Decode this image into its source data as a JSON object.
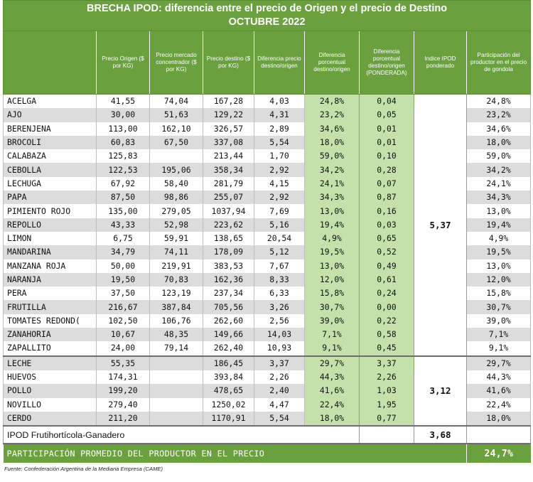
{
  "title": {
    "line1": "BRECHA IPOD: diferencia entre el precio de Origen y el precio de Destino",
    "line2": "OCTUBRE 2022"
  },
  "headers": [
    "",
    "Precio Origen ($ por KG)",
    "Precio mercado concentrador ($ por KG)",
    "Precio destino ($ por KG)",
    "Diferencia precio destino/origen",
    "Diferencia porcentual destino/origen",
    "Diferencia porcentual destino/origen (PONDERADA)",
    "Indice IPOD ponderado",
    "Participación del productor en el precio de gondola"
  ],
  "groups": [
    {
      "ipod": "5,37",
      "rows": [
        {
          "producto": "ACELGA",
          "origen": "41,55",
          "mercado": "74,04",
          "destino": "167,28",
          "diferencia": "4,03",
          "porcentual": "24,8%",
          "ponderada": "0,04",
          "participacion": "24,8%"
        },
        {
          "producto": "AJO",
          "origen": "30,00",
          "mercado": "51,63",
          "destino": "129,22",
          "diferencia": "4,31",
          "porcentual": "23,2%",
          "ponderada": "0,05",
          "participacion": "23,2%"
        },
        {
          "producto": "BERENJENA",
          "origen": "113,00",
          "mercado": "162,10",
          "destino": "326,57",
          "diferencia": "2,89",
          "porcentual": "34,6%",
          "ponderada": "0,01",
          "participacion": "34,6%"
        },
        {
          "producto": "BROCOLI",
          "origen": "60,83",
          "mercado": "67,50",
          "destino": "337,08",
          "diferencia": "5,54",
          "porcentual": "18,0%",
          "ponderada": "0,01",
          "participacion": "18,0%"
        },
        {
          "producto": "CALABAZA",
          "origen": "125,83",
          "mercado": "",
          "destino": "213,44",
          "diferencia": "1,70",
          "porcentual": "59,0%",
          "ponderada": "0,10",
          "participacion": "59,0%"
        },
        {
          "producto": "CEBOLLA",
          "origen": "122,53",
          "mercado": "195,06",
          "destino": "358,34",
          "diferencia": "2,92",
          "porcentual": "34,2%",
          "ponderada": "0,28",
          "participacion": "34,2%"
        },
        {
          "producto": "LECHUGA",
          "origen": "67,92",
          "mercado": "58,40",
          "destino": "281,79",
          "diferencia": "4,15",
          "porcentual": "24,1%",
          "ponderada": "0,07",
          "participacion": "24,1%"
        },
        {
          "producto": "PAPA",
          "origen": "87,50",
          "mercado": "98,86",
          "destino": "255,07",
          "diferencia": "2,92",
          "porcentual": "34,3%",
          "ponderada": "0,87",
          "participacion": "34,3%"
        },
        {
          "producto": "PIMIENTO ROJO",
          "origen": "135,00",
          "mercado": "279,05",
          "destino": "1037,94",
          "diferencia": "7,69",
          "porcentual": "13,0%",
          "ponderada": "0,16",
          "participacion": "13,0%"
        },
        {
          "producto": "REPOLLO",
          "origen": "43,33",
          "mercado": "52,98",
          "destino": "223,62",
          "diferencia": "5,16",
          "porcentual": "19,4%",
          "ponderada": "0,03",
          "participacion": "19,4%"
        },
        {
          "producto": "LIMON",
          "origen": "6,75",
          "mercado": "59,91",
          "destino": "138,65",
          "diferencia": "20,54",
          "porcentual": "4,9%",
          "ponderada": "0,65",
          "participacion": "4,9%"
        },
        {
          "producto": "MANDARINA",
          "origen": "34,79",
          "mercado": "74,11",
          "destino": "178,09",
          "diferencia": "5,12",
          "porcentual": "19,5%",
          "ponderada": "0,52",
          "participacion": "19,5%"
        },
        {
          "producto": "MANZANA ROJA",
          "origen": "50,00",
          "mercado": "219,91",
          "destino": "383,53",
          "diferencia": "7,67",
          "porcentual": "13,0%",
          "ponderada": "0,49",
          "participacion": "13,0%"
        },
        {
          "producto": "NARANJA",
          "origen": "19,50",
          "mercado": "70,83",
          "destino": "162,36",
          "diferencia": "8,33",
          "porcentual": "12,0%",
          "ponderada": "0,61",
          "participacion": "12,0%"
        },
        {
          "producto": "PERA",
          "origen": "37,50",
          "mercado": "123,19",
          "destino": "237,34",
          "diferencia": "6,33",
          "porcentual": "15,8%",
          "ponderada": "0,24",
          "participacion": "15,8%"
        },
        {
          "producto": "FRUTILLA",
          "origen": "216,67",
          "mercado": "387,84",
          "destino": "705,56",
          "diferencia": "3,26",
          "porcentual": "30,7%",
          "ponderada": "0,00",
          "participacion": "30,7%"
        },
        {
          "producto": "TOMATES REDOND(",
          "origen": "102,50",
          "mercado": "106,76",
          "destino": "262,60",
          "diferencia": "2,56",
          "porcentual": "39,0%",
          "ponderada": "0,22",
          "participacion": "39,0%"
        },
        {
          "producto": "ZANAHORIA",
          "origen": "10,67",
          "mercado": "48,35",
          "destino": "149,66",
          "diferencia": "14,03",
          "porcentual": "7,1%",
          "ponderada": "0,58",
          "participacion": "7,1%"
        },
        {
          "producto": "ZAPALLITO",
          "origen": "24,00",
          "mercado": "79,14",
          "destino": "262,40",
          "diferencia": "10,93",
          "porcentual": "9,1%",
          "ponderada": "0,45",
          "participacion": "9,1%"
        }
      ]
    },
    {
      "ipod": "3,12",
      "rows": [
        {
          "producto": "LECHE",
          "origen": "55,35",
          "mercado": "",
          "destino": "186,45",
          "diferencia": "3,37",
          "porcentual": "29,7%",
          "ponderada": "3,37",
          "participacion": "29,7%"
        },
        {
          "producto": "HUEVOS",
          "origen": "174,31",
          "mercado": "",
          "destino": "393,84",
          "diferencia": "2,26",
          "porcentual": "44,3%",
          "ponderada": "2,26",
          "participacion": "44,3%"
        },
        {
          "producto": "POLLO",
          "origen": "199,20",
          "mercado": "",
          "destino": "478,65",
          "diferencia": "2,40",
          "porcentual": "41,6%",
          "ponderada": "1,03",
          "participacion": "41,6%"
        },
        {
          "producto": "NOVILLO",
          "origen": "279,40",
          "mercado": "",
          "destino": "1250,02",
          "diferencia": "4,47",
          "porcentual": "22,4%",
          "ponderada": "1,95",
          "participacion": "22,4%"
        },
        {
          "producto": "CERDO",
          "origen": "211,20",
          "mercado": "",
          "destino": "1170,91",
          "diferencia": "5,54",
          "porcentual": "18,0%",
          "ponderada": "0,77",
          "participacion": "18,0%"
        }
      ]
    }
  ],
  "total": {
    "label": "IPOD Frutihortícola-Ganadero",
    "value": "3,68"
  },
  "footer": {
    "label": "PARTICIPACIÓN PROMEDIO DEL PRODUCTOR EN EL PRECIO",
    "value": "24,7%"
  },
  "source": "Fuente: Confederación Argentina de la Mediana Empresa (CAME)"
}
